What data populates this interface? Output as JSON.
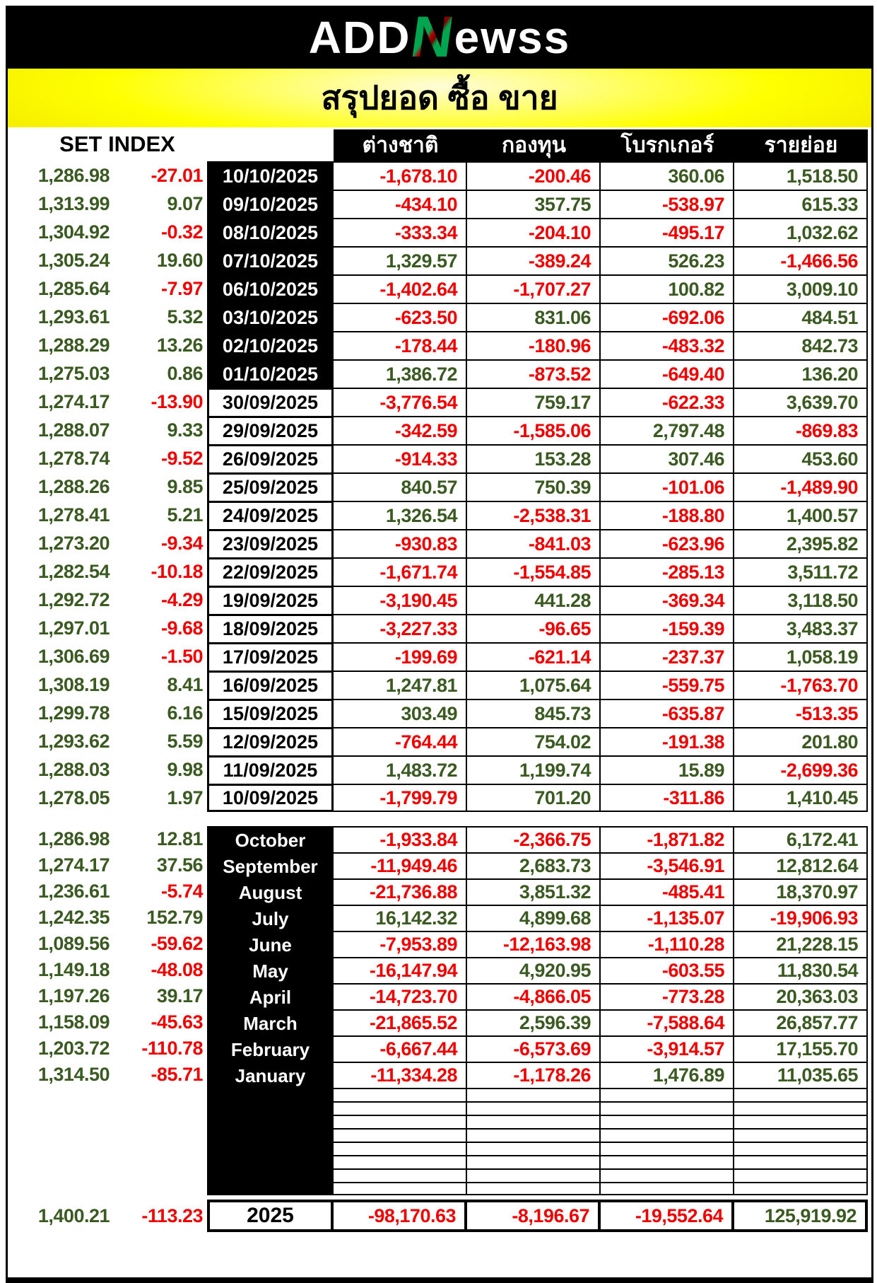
{
  "header": {
    "logo": {
      "part1": "ADD",
      "part2": "N",
      "part3": "ewss"
    },
    "title": "สรุปยอด ซื้อ ขาย"
  },
  "chart_data": {
    "type": "table",
    "title": "สรุปยอด ซื้อ ขาย",
    "set_index_label": "SET INDEX",
    "investor_columns": [
      "ต่างชาติ",
      "กองทุน",
      "โบรกเกอร์",
      "รายย่อย"
    ],
    "daily_rows": [
      {
        "set_index": "1,286.98",
        "change": "-27.01",
        "date": "10/10/2025",
        "date_highlight": true,
        "values": [
          "-1,678.10",
          "-200.46",
          "360.06",
          "1,518.50"
        ]
      },
      {
        "set_index": "1,313.99",
        "change": "9.07",
        "date": "09/10/2025",
        "date_highlight": true,
        "values": [
          "-434.10",
          "357.75",
          "-538.97",
          "615.33"
        ]
      },
      {
        "set_index": "1,304.92",
        "change": "-0.32",
        "date": "08/10/2025",
        "date_highlight": true,
        "values": [
          "-333.34",
          "-204.10",
          "-495.17",
          "1,032.62"
        ]
      },
      {
        "set_index": "1,305.24",
        "change": "19.60",
        "date": "07/10/2025",
        "date_highlight": true,
        "values": [
          "1,329.57",
          "-389.24",
          "526.23",
          "-1,466.56"
        ]
      },
      {
        "set_index": "1,285.64",
        "change": "-7.97",
        "date": "06/10/2025",
        "date_highlight": true,
        "values": [
          "-1,402.64",
          "-1,707.27",
          "100.82",
          "3,009.10"
        ]
      },
      {
        "set_index": "1,293.61",
        "change": "5.32",
        "date": "03/10/2025",
        "date_highlight": true,
        "values": [
          "-623.50",
          "831.06",
          "-692.06",
          "484.51"
        ]
      },
      {
        "set_index": "1,288.29",
        "change": "13.26",
        "date": "02/10/2025",
        "date_highlight": true,
        "values": [
          "-178.44",
          "-180.96",
          "-483.32",
          "842.73"
        ]
      },
      {
        "set_index": "1,275.03",
        "change": "0.86",
        "date": "01/10/2025",
        "date_highlight": true,
        "values": [
          "1,386.72",
          "-873.52",
          "-649.40",
          "136.20"
        ]
      },
      {
        "set_index": "1,274.17",
        "change": "-13.90",
        "date": "30/09/2025",
        "date_highlight": false,
        "values": [
          "-3,776.54",
          "759.17",
          "-622.33",
          "3,639.70"
        ]
      },
      {
        "set_index": "1,288.07",
        "change": "9.33",
        "date": "29/09/2025",
        "date_highlight": false,
        "values": [
          "-342.59",
          "-1,585.06",
          "2,797.48",
          "-869.83"
        ]
      },
      {
        "set_index": "1,278.74",
        "change": "-9.52",
        "date": "26/09/2025",
        "date_highlight": false,
        "values": [
          "-914.33",
          "153.28",
          "307.46",
          "453.60"
        ]
      },
      {
        "set_index": "1,288.26",
        "change": "9.85",
        "date": "25/09/2025",
        "date_highlight": false,
        "values": [
          "840.57",
          "750.39",
          "-101.06",
          "-1,489.90"
        ]
      },
      {
        "set_index": "1,278.41",
        "change": "5.21",
        "date": "24/09/2025",
        "date_highlight": false,
        "values": [
          "1,326.54",
          "-2,538.31",
          "-188.80",
          "1,400.57"
        ]
      },
      {
        "set_index": "1,273.20",
        "change": "-9.34",
        "date": "23/09/2025",
        "date_highlight": false,
        "values": [
          "-930.83",
          "-841.03",
          "-623.96",
          "2,395.82"
        ]
      },
      {
        "set_index": "1,282.54",
        "change": "-10.18",
        "date": "22/09/2025",
        "date_highlight": false,
        "values": [
          "-1,671.74",
          "-1,554.85",
          "-285.13",
          "3,511.72"
        ]
      },
      {
        "set_index": "1,292.72",
        "change": "-4.29",
        "date": "19/09/2025",
        "date_highlight": false,
        "values": [
          "-3,190.45",
          "441.28",
          "-369.34",
          "3,118.50"
        ]
      },
      {
        "set_index": "1,297.01",
        "change": "-9.68",
        "date": "18/09/2025",
        "date_highlight": false,
        "values": [
          "-3,227.33",
          "-96.65",
          "-159.39",
          "3,483.37"
        ]
      },
      {
        "set_index": "1,306.69",
        "change": "-1.50",
        "date": "17/09/2025",
        "date_highlight": false,
        "values": [
          "-199.69",
          "-621.14",
          "-237.37",
          "1,058.19"
        ]
      },
      {
        "set_index": "1,308.19",
        "change": "8.41",
        "date": "16/09/2025",
        "date_highlight": false,
        "values": [
          "1,247.81",
          "1,075.64",
          "-559.75",
          "-1,763.70"
        ]
      },
      {
        "set_index": "1,299.78",
        "change": "6.16",
        "date": "15/09/2025",
        "date_highlight": false,
        "values": [
          "303.49",
          "845.73",
          "-635.87",
          "-513.35"
        ]
      },
      {
        "set_index": "1,293.62",
        "change": "5.59",
        "date": "12/09/2025",
        "date_highlight": false,
        "values": [
          "-764.44",
          "754.02",
          "-191.38",
          "201.80"
        ]
      },
      {
        "set_index": "1,288.03",
        "change": "9.98",
        "date": "11/09/2025",
        "date_highlight": false,
        "values": [
          "1,483.72",
          "1,199.74",
          "15.89",
          "-2,699.36"
        ]
      },
      {
        "set_index": "1,278.05",
        "change": "1.97",
        "date": "10/09/2025",
        "date_highlight": false,
        "values": [
          "-1,799.79",
          "701.20",
          "-311.86",
          "1,410.45"
        ]
      }
    ],
    "monthly_rows": [
      {
        "set_index": "1,286.98",
        "change": "12.81",
        "month": "October",
        "values": [
          "-1,933.84",
          "-2,366.75",
          "-1,871.82",
          "6,172.41"
        ]
      },
      {
        "set_index": "1,274.17",
        "change": "37.56",
        "month": "September",
        "values": [
          "-11,949.46",
          "2,683.73",
          "-3,546.91",
          "12,812.64"
        ]
      },
      {
        "set_index": "1,236.61",
        "change": "-5.74",
        "month": "August",
        "values": [
          "-21,736.88",
          "3,851.32",
          "-485.41",
          "18,370.97"
        ]
      },
      {
        "set_index": "1,242.35",
        "change": "152.79",
        "month": "July",
        "values": [
          "16,142.32",
          "4,899.68",
          "-1,135.07",
          "-19,906.93"
        ]
      },
      {
        "set_index": "1,089.56",
        "change": "-59.62",
        "month": "June",
        "values": [
          "-7,953.89",
          "-12,163.98",
          "-1,110.28",
          "21,228.15"
        ]
      },
      {
        "set_index": "1,149.18",
        "change": "-48.08",
        "month": "May",
        "values": [
          "-16,147.94",
          "4,920.95",
          "-603.55",
          "11,830.54"
        ]
      },
      {
        "set_index": "1,197.26",
        "change": "39.17",
        "month": "April",
        "values": [
          "-14,723.70",
          "-4,866.05",
          "-773.28",
          "20,363.03"
        ]
      },
      {
        "set_index": "1,158.09",
        "change": "-45.63",
        "month": "March",
        "values": [
          "-21,865.52",
          "2,596.39",
          "-7,588.64",
          "26,857.77"
        ]
      },
      {
        "set_index": "1,203.72",
        "change": "-110.78",
        "month": "February",
        "values": [
          "-6,667.44",
          "-6,573.69",
          "-3,914.57",
          "17,155.70"
        ]
      },
      {
        "set_index": "1,314.50",
        "change": "-85.71",
        "month": "January",
        "values": [
          "-11,334.28",
          "-1,178.26",
          "1,476.89",
          "11,035.65"
        ]
      }
    ],
    "empty_row_count": 8,
    "total_row": {
      "set_index": "1,400.21",
      "change": "-113.23",
      "label": "2025",
      "values": [
        "-98,170.63",
        "-8,196.67",
        "-19,552.64",
        "125,919.92"
      ]
    }
  },
  "colors": {
    "positive": "#3B5A21",
    "negative": "#EF0000",
    "banner_yellow": "#FFFF00",
    "header_bg": "#000000"
  }
}
